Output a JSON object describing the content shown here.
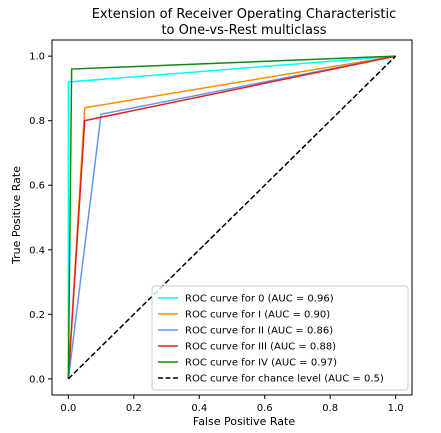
{
  "chart_data": {
    "type": "line",
    "title": "Extension of Receiver Operating Characteristic",
    "subtitle": "to One-vs-Rest multiclass",
    "xlabel": "False Positive Rate",
    "ylabel": "True Positive Rate",
    "xlim": [
      -0.05,
      1.05
    ],
    "ylim": [
      -0.05,
      1.05
    ],
    "xticks": [
      0.0,
      0.2,
      0.4,
      0.6,
      0.8,
      1.0
    ],
    "yticks": [
      0.0,
      0.2,
      0.4,
      0.6,
      0.8,
      1.0
    ],
    "xtick_labels": [
      "0.0",
      "0.2",
      "0.4",
      "0.6",
      "0.8",
      "1.0"
    ],
    "ytick_labels": [
      "0.0",
      "0.2",
      "0.4",
      "0.6",
      "0.8",
      "1.0"
    ],
    "grid": false,
    "legend_position": "lower-right",
    "series": [
      {
        "name": "ROC curve for 0 (AUC = 0.96)",
        "color": "#00ffff",
        "dash": "solid",
        "x": [
          0.0,
          0.0,
          1.0
        ],
        "y": [
          0.0,
          0.92,
          1.0
        ]
      },
      {
        "name": "ROC curve for I (AUC = 0.90)",
        "color": "#ff8c00",
        "dash": "solid",
        "x": [
          0.0,
          0.05,
          1.0
        ],
        "y": [
          0.0,
          0.84,
          1.0
        ]
      },
      {
        "name": "ROC curve for II (AUC = 0.86)",
        "color": "#6495ed",
        "dash": "solid",
        "x": [
          0.0,
          0.1,
          1.0
        ],
        "y": [
          0.0,
          0.82,
          1.0
        ]
      },
      {
        "name": "ROC curve for III (AUC = 0.88)",
        "color": "#dd2222",
        "dash": "solid",
        "x": [
          0.0,
          0.05,
          1.0
        ],
        "y": [
          0.0,
          0.8,
          1.0
        ]
      },
      {
        "name": "ROC curve for IV (AUC = 0.97)",
        "color": "#118811",
        "dash": "solid",
        "x": [
          0.0,
          0.01,
          1.0
        ],
        "y": [
          0.0,
          0.96,
          1.0
        ]
      },
      {
        "name": "ROC curve for chance level (AUC = 0.5)",
        "color": "#000000",
        "dash": "dashed",
        "x": [
          0.0,
          1.0
        ],
        "y": [
          0.0,
          1.0
        ]
      }
    ]
  }
}
